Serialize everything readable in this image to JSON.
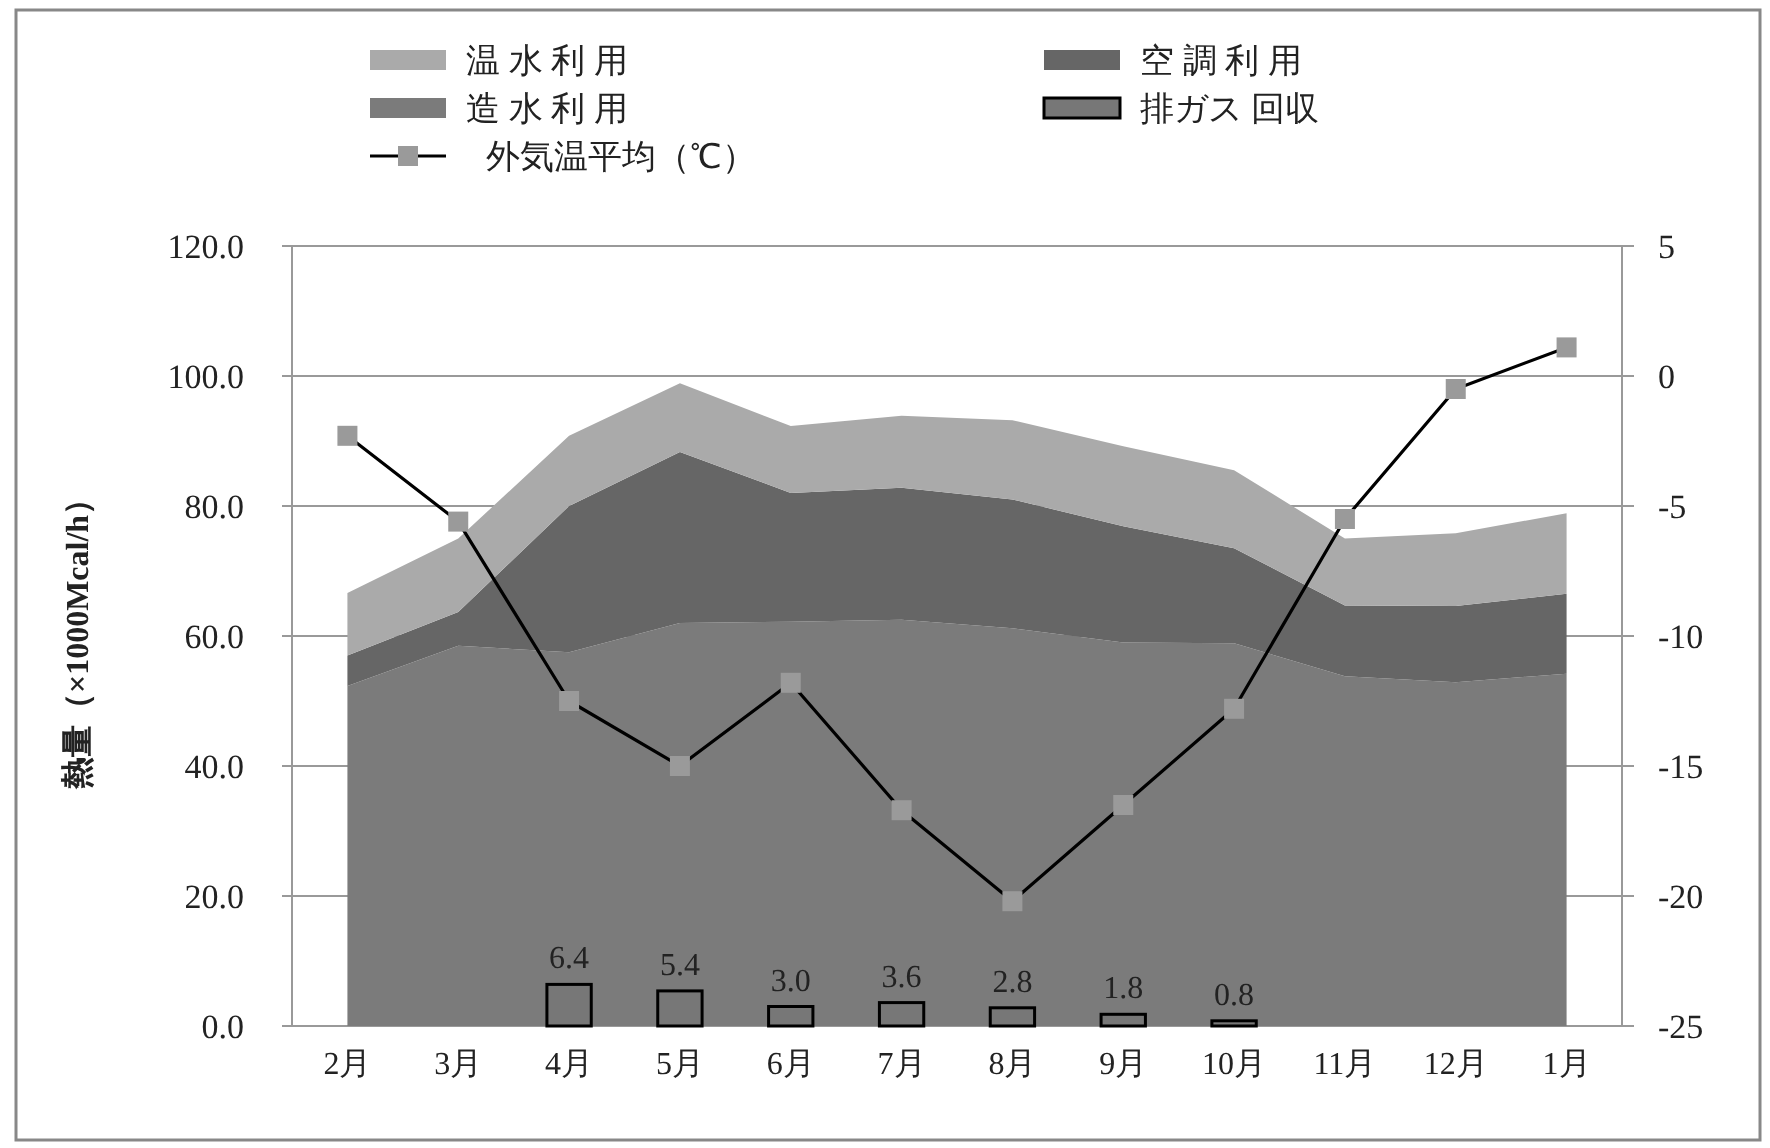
{
  "chart_data": {
    "type": "area",
    "stacked": true,
    "categories": [
      "2月",
      "3月",
      "4月",
      "5月",
      "6月",
      "7月",
      "8月",
      "9月",
      "10月",
      "11月",
      "12月",
      "1月"
    ],
    "ylabel": "熱量（×1000Mcal/h）",
    "ylim": [
      0,
      120
    ],
    "yticks": [
      {
        "value": 0,
        "label": "0.0"
      },
      {
        "value": 20,
        "label": "20.0"
      },
      {
        "value": 40,
        "label": "40.0"
      },
      {
        "value": 60,
        "label": "60.0"
      },
      {
        "value": 80,
        "label": "80.0"
      },
      {
        "value": 100,
        "label": "100.0"
      },
      {
        "value": 120,
        "label": "120.0"
      }
    ],
    "y2lim": [
      -25,
      5
    ],
    "y2ticks": [
      -25,
      -20,
      -15,
      -10,
      -5,
      0,
      5
    ],
    "grid": "y",
    "legend": "top",
    "series": [
      {
        "name": "造 水 利 用",
        "color": "#7b7b7b",
        "values": [
          52.3,
          58.5,
          57.5,
          62.0,
          62.2,
          62.5,
          61.2,
          59.0,
          58.9,
          53.8,
          52.9,
          54.2
        ]
      },
      {
        "name": "空 調 利 用",
        "color": "#666666",
        "values": [
          4.7,
          5.2,
          22.5,
          26.3,
          19.8,
          20.3,
          19.8,
          17.9,
          14.6,
          10.9,
          11.7,
          12.3
        ]
      },
      {
        "name": "温 水 利 用",
        "color": "#aaaaaa",
        "values": [
          9.6,
          11.3,
          10.8,
          10.6,
          10.3,
          11.1,
          12.2,
          12.3,
          12.0,
          10.3,
          11.2,
          12.4
        ]
      },
      {
        "name": "排ガス 回収",
        "type": "bar",
        "color": "#777777",
        "values": [
          null,
          null,
          6.4,
          5.4,
          3.0,
          3.6,
          2.8,
          1.8,
          0.8,
          null,
          null,
          null
        ],
        "value_labels": [
          null,
          null,
          "6.4",
          "5.4",
          "3.0",
          "3.6",
          "2.8",
          "1.8",
          "0.8",
          null,
          null,
          null
        ]
      },
      {
        "name": "外気温平均（℃）",
        "type": "line",
        "axis": "y2",
        "color": "#000000",
        "marker": "square",
        "values": [
          -2.3,
          -5.6,
          -12.5,
          -15.0,
          -11.8,
          -16.7,
          -20.2,
          -16.5,
          -12.8,
          -5.5,
          -0.5,
          1.1
        ]
      }
    ]
  }
}
